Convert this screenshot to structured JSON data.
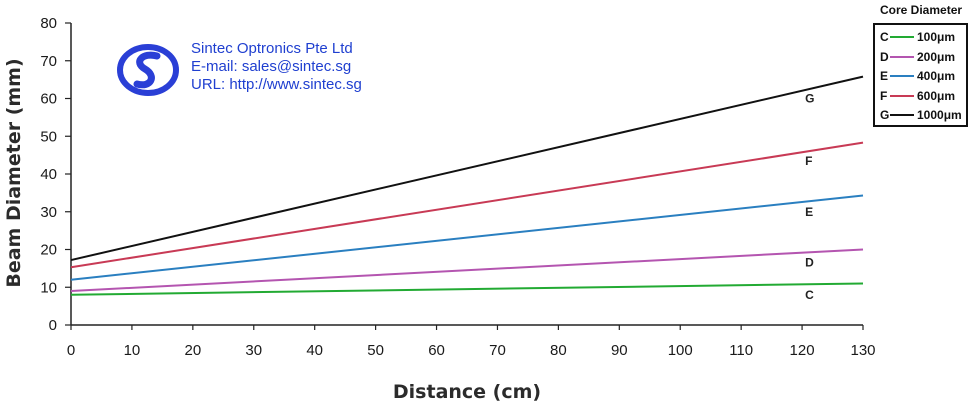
{
  "company": {
    "name": "Sintec Optronics Pte Ltd",
    "email": "E-mail: sales@sintec.sg",
    "url": "URL: http://www.sintec.sg",
    "logo_color": "#2a3fd6"
  },
  "chart_data": {
    "type": "line",
    "xlabel": "Distance (cm)",
    "ylabel": "Beam Diameter (mm)",
    "xlim": [
      0,
      130
    ],
    "ylim": [
      0,
      80
    ],
    "x_ticks": [
      0,
      10,
      20,
      30,
      40,
      50,
      60,
      70,
      80,
      90,
      100,
      110,
      120,
      130
    ],
    "y_ticks": [
      0,
      10,
      20,
      30,
      40,
      50,
      60,
      70,
      80
    ],
    "grid": false,
    "legend_title": "Core Diameter",
    "legend_position": "top-right, outside plot",
    "series": [
      {
        "letter": "C",
        "name": "100μm",
        "color": "#22aa33",
        "x": [
          0,
          130
        ],
        "y": [
          8,
          11
        ],
        "label_at": [
          121,
          8
        ]
      },
      {
        "letter": "D",
        "name": "200μm",
        "color": "#b455b0",
        "x": [
          0,
          130
        ],
        "y": [
          9,
          20
        ],
        "label_at": [
          121,
          16.5
        ]
      },
      {
        "letter": "E",
        "name": "400μm",
        "color": "#2a7fc0",
        "x": [
          0,
          130
        ],
        "y": [
          12,
          34.3
        ],
        "label_at": [
          121,
          30
        ]
      },
      {
        "letter": "F",
        "name": "600μm",
        "color": "#c83a55",
        "x": [
          0,
          130
        ],
        "y": [
          15.3,
          48.3
        ],
        "label_at": [
          121,
          43.5
        ]
      },
      {
        "letter": "G",
        "name": "1000μm",
        "color": "#111111",
        "x": [
          0,
          130
        ],
        "y": [
          17.2,
          65.8
        ],
        "label_at": [
          121,
          60
        ]
      }
    ]
  }
}
